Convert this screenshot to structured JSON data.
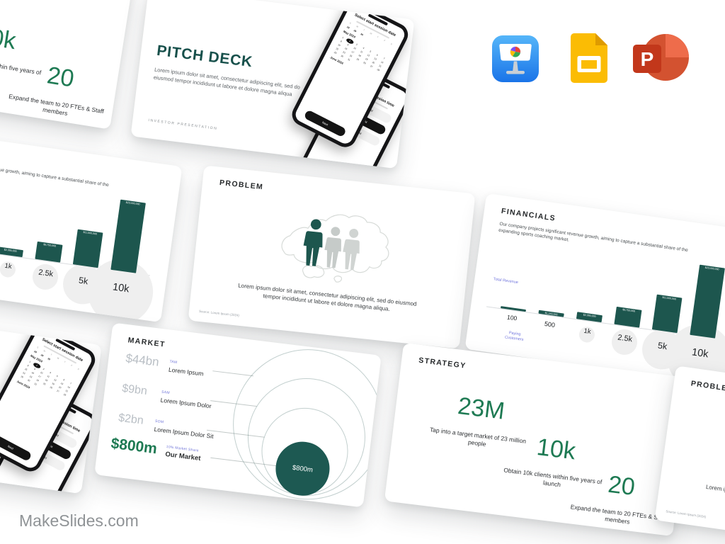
{
  "site": {
    "brand": "MakeSlides.com"
  },
  "formats": {
    "keynote_label": "keynote-icon",
    "google_slides_label": "google-slides-icon",
    "powerpoint_label": "powerpoint-icon",
    "powerpoint_letter": "P"
  },
  "colors": {
    "accent_green": "#1e7a53",
    "teal_dark": "#1d564e",
    "title_teal": "#17504b",
    "label_purple": "#6f74d8",
    "money_gray": "#b9bfc5"
  },
  "slides": {
    "cover": {
      "title": "PITCH DECK",
      "body": "Lorem ipsum dolor sit amet, consectetur adipiscing elit, sed do eiusmod tempor incididunt ut labore et dolore magna aliqua",
      "footer": "INVESTOR PRESENTATION",
      "phone_date": {
        "heading": "Select start session date",
        "weekdays": [
          "S",
          "M",
          "T",
          "W",
          "T",
          "F",
          "S"
        ],
        "lead_days": [
          "28",
          "29",
          "30"
        ],
        "month_top": "May 2024",
        "selected_day": 2,
        "month_bottom": "June 2024",
        "button": "Next"
      },
      "phone_time": {
        "heading": "Select start session time",
        "options": [
          "10:00 AM",
          "11:00 AM",
          "12:00 PM"
        ],
        "selected": "11:00 AM"
      }
    },
    "problem": {
      "title": "PROBLEM",
      "body": "Lorem ipsum dolor sit amet, consectetur adipiscing elit, sed do eiusmod tempor incididunt ut labore et dolore magna aliqua.",
      "source": "Source: Lorem Ipsum (2024)"
    },
    "market": {
      "title": "MARKET",
      "rows": [
        {
          "value": "$44bn",
          "tag": "TAM",
          "label": "Lorem Ipsum"
        },
        {
          "value": "$9bn",
          "tag": "SAM",
          "label": "Lorem Ipsum Dolor"
        },
        {
          "value": "$2bn",
          "tag": "SOM",
          "label": "Lorem Ipsum Dolor Sit"
        },
        {
          "value": "$800m",
          "tag": "10% Market Share",
          "label": "Our Market"
        }
      ],
      "bubble_label": "$800m"
    },
    "strategy": {
      "title": "STRATEGY",
      "stats": [
        {
          "value": "23M",
          "caption": "Tap into a target market of 23 million people"
        },
        {
          "value": "10k",
          "caption": "Obtain 10k clients within five years of launch"
        },
        {
          "value": "20",
          "caption": "Expand the team to 20 FTEs & Staff members"
        }
      ]
    },
    "financials": {
      "title": "FINANCIALS",
      "body": "Our company projects significant revenue growth, aiming to capture a substantial share of the expanding sports coaching market.",
      "y_axis_label": "Total Revenue",
      "x_axis_label": "Paying Customers"
    }
  },
  "chart_data": {
    "type": "bar",
    "title": "FINANCIALS",
    "categories": [
      "100",
      "500",
      "1k",
      "2.5k",
      "5k",
      "10k"
    ],
    "values": [
      230000,
      1150000,
      2300000,
      5750000,
      11500000,
      23000000
    ],
    "bar_labels": [
      "",
      "$1,150,000",
      "$2,300,000",
      "$5,750,000",
      "$11,500,000",
      "$23,000,000"
    ],
    "xlabel": "Paying Customers",
    "ylabel": "Total Revenue",
    "ylim": [
      0,
      23000000
    ],
    "grid": false,
    "legend": false
  }
}
